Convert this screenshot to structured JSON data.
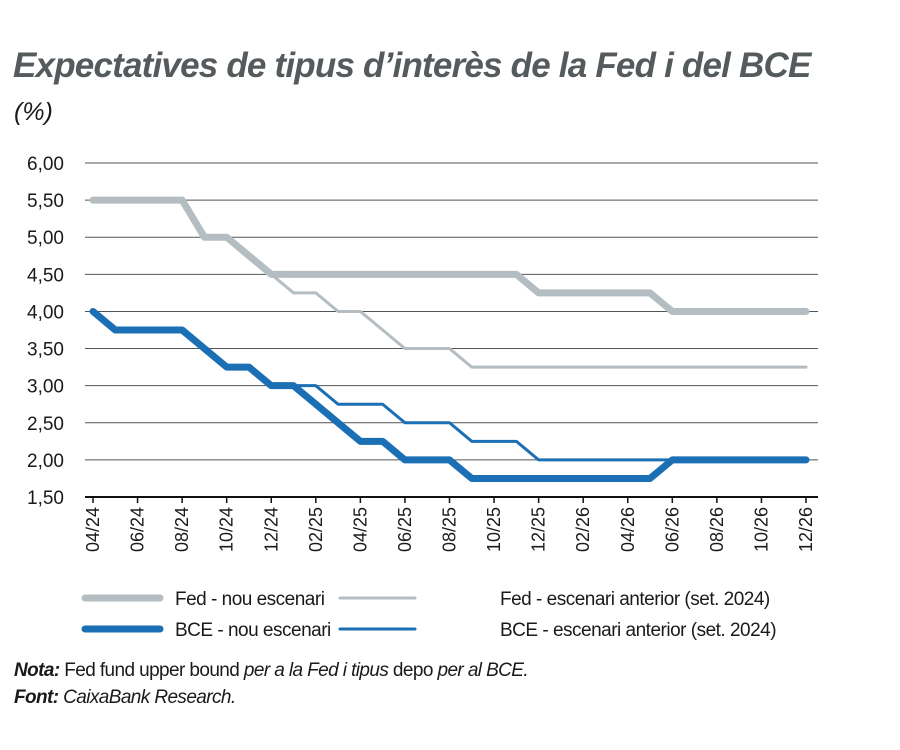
{
  "chart_data": {
    "type": "line",
    "title": "Expectatives de tipus d’interès de la Fed i del BCE",
    "unit_label": "(%)",
    "x": [
      "04/24",
      "05/24",
      "06/24",
      "07/24",
      "08/24",
      "09/24",
      "10/24",
      "11/24",
      "12/24",
      "01/25",
      "02/25",
      "03/25",
      "04/25",
      "05/25",
      "06/25",
      "07/25",
      "08/25",
      "09/25",
      "10/25",
      "11/25",
      "12/25",
      "01/26",
      "02/26",
      "03/26",
      "04/26",
      "05/26",
      "06/26",
      "07/26",
      "08/26",
      "09/26",
      "10/26",
      "11/26",
      "12/26"
    ],
    "x_tick_labels": [
      "04/24",
      "06/24",
      "08/24",
      "10/24",
      "12/24",
      "02/25",
      "04/25",
      "06/25",
      "08/25",
      "10/25",
      "12/25",
      "02/26",
      "04/26",
      "06/26",
      "08/26",
      "10/26",
      "12/26"
    ],
    "y_tick_labels": [
      "6,00",
      "5,50",
      "5,00",
      "4,50",
      "4,00",
      "3,50",
      "3,00",
      "2,50",
      "2,00",
      "1,50"
    ],
    "ylim": [
      1.5,
      6.0
    ],
    "grid": true,
    "legend_position": "bottom",
    "series": [
      {
        "name": "Fed - nou escenari",
        "color": "#b4bdc1",
        "style": "thick",
        "values": [
          5.5,
          5.5,
          5.5,
          5.5,
          5.5,
          5.0,
          5.0,
          4.75,
          4.5,
          4.5,
          4.5,
          4.5,
          4.5,
          4.5,
          4.5,
          4.5,
          4.5,
          4.5,
          4.5,
          4.5,
          4.25,
          4.25,
          4.25,
          4.25,
          4.25,
          4.25,
          4.0,
          4.0,
          4.0,
          4.0,
          4.0,
          4.0,
          4.0
        ]
      },
      {
        "name": "Fed - escenari anterior (set. 2024)",
        "color": "#b4bdc1",
        "style": "thin",
        "values": [
          5.5,
          5.5,
          5.5,
          5.5,
          5.5,
          5.0,
          5.0,
          4.75,
          4.5,
          4.25,
          4.25,
          4.0,
          4.0,
          3.75,
          3.5,
          3.5,
          3.5,
          3.25,
          3.25,
          3.25,
          3.25,
          3.25,
          3.25,
          3.25,
          3.25,
          3.25,
          3.25,
          3.25,
          3.25,
          3.25,
          3.25,
          3.25,
          3.25
        ]
      },
      {
        "name": "BCE - nou escenari",
        "color": "#1b6fb5",
        "style": "thick",
        "values": [
          4.0,
          3.75,
          3.75,
          3.75,
          3.75,
          3.5,
          3.25,
          3.25,
          3.0,
          3.0,
          2.75,
          2.5,
          2.25,
          2.25,
          2.0,
          2.0,
          2.0,
          1.75,
          1.75,
          1.75,
          1.75,
          1.75,
          1.75,
          1.75,
          1.75,
          1.75,
          2.0,
          2.0,
          2.0,
          2.0,
          2.0,
          2.0,
          2.0
        ]
      },
      {
        "name": "BCE - escenari anterior (set. 2024)",
        "color": "#1b6fb5",
        "style": "thin",
        "values": [
          4.0,
          3.75,
          3.75,
          3.75,
          3.75,
          3.5,
          3.25,
          3.25,
          3.0,
          3.0,
          3.0,
          2.75,
          2.75,
          2.75,
          2.5,
          2.5,
          2.5,
          2.25,
          2.25,
          2.25,
          2.0,
          2.0,
          2.0,
          2.0,
          2.0,
          2.0,
          2.0,
          2.0,
          2.0,
          2.0,
          2.0,
          2.0,
          2.0
        ]
      }
    ]
  },
  "footer": {
    "nota_label": "Nota:",
    "nota_parts": [
      "Fed fund upper bound",
      " per a la Fed i tipus ",
      "depo",
      " per al BCE."
    ],
    "font_label": "Font:",
    "font_text": "CaixaBank Research."
  }
}
